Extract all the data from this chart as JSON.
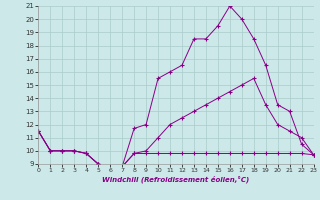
{
  "xlabel": "Windchill (Refroidissement éolien,°C)",
  "background_color": "#cce8e8",
  "line_color": "#880088",
  "grid_color": "#aacccc",
  "xlim": [
    0,
    23
  ],
  "ylim": [
    9,
    21
  ],
  "xticks": [
    0,
    1,
    2,
    3,
    4,
    5,
    6,
    7,
    8,
    9,
    10,
    11,
    12,
    13,
    14,
    15,
    16,
    17,
    18,
    19,
    20,
    21,
    22,
    23
  ],
  "yticks": [
    9,
    10,
    11,
    12,
    13,
    14,
    15,
    16,
    17,
    18,
    19,
    20,
    21
  ],
  "series": [
    {
      "x": [
        0,
        1,
        2,
        3,
        4,
        5,
        6,
        7,
        8,
        9,
        10,
        11,
        12,
        13,
        14,
        15,
        16,
        17,
        18,
        19,
        20,
        21,
        22,
        23
      ],
      "y": [
        11.5,
        10.0,
        10.0,
        10.0,
        9.8,
        9.0,
        8.8,
        8.8,
        9.8,
        9.8,
        9.8,
        9.8,
        9.8,
        9.8,
        9.8,
        9.8,
        9.8,
        9.8,
        9.8,
        9.8,
        9.8,
        9.8,
        9.8,
        9.7
      ]
    },
    {
      "x": [
        0,
        1,
        2,
        3,
        4,
        5,
        6,
        7,
        8,
        9,
        10,
        11,
        12,
        13,
        14,
        15,
        16,
        17,
        18,
        19,
        20,
        21,
        22,
        23
      ],
      "y": [
        11.5,
        10.0,
        10.0,
        10.0,
        9.8,
        9.0,
        8.8,
        8.8,
        9.8,
        10.0,
        11.0,
        12.0,
        12.5,
        13.0,
        13.5,
        14.0,
        14.5,
        15.0,
        15.5,
        13.5,
        12.0,
        11.5,
        11.0,
        9.7
      ]
    },
    {
      "x": [
        0,
        1,
        2,
        3,
        4,
        5,
        6,
        7,
        8,
        9,
        10,
        11,
        12,
        13,
        14,
        15,
        16,
        17,
        18,
        19,
        20,
        21,
        22,
        23
      ],
      "y": [
        11.5,
        10.0,
        10.0,
        10.0,
        9.8,
        9.0,
        8.8,
        8.8,
        11.7,
        12.0,
        15.5,
        16.0,
        16.5,
        18.5,
        18.5,
        19.5,
        21.0,
        20.0,
        18.5,
        16.5,
        13.5,
        13.0,
        10.5,
        9.7
      ]
    }
  ]
}
